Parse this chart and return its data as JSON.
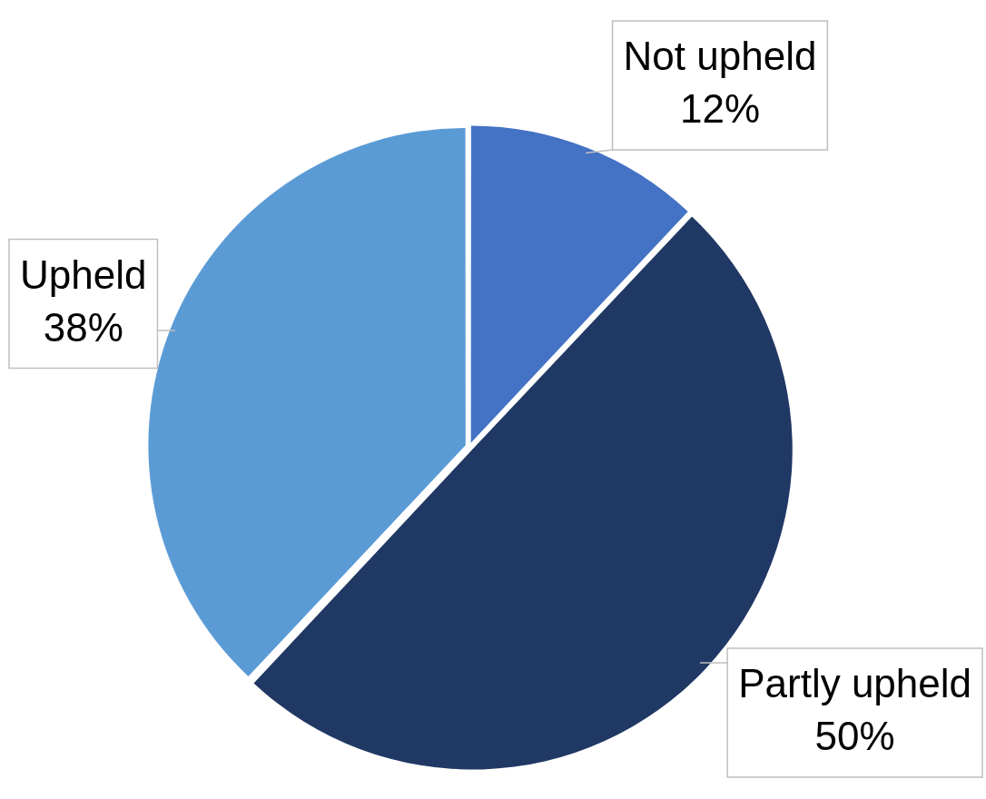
{
  "chart_data": {
    "type": "pie",
    "categories": [
      "Not upheld",
      "Partly upheld",
      "Upheld"
    ],
    "values": [
      12,
      50,
      38
    ],
    "colors": [
      "#4472c4",
      "#203864",
      "#5b9bd5"
    ],
    "value_labels": [
      "12%",
      "50%",
      "38%"
    ]
  }
}
